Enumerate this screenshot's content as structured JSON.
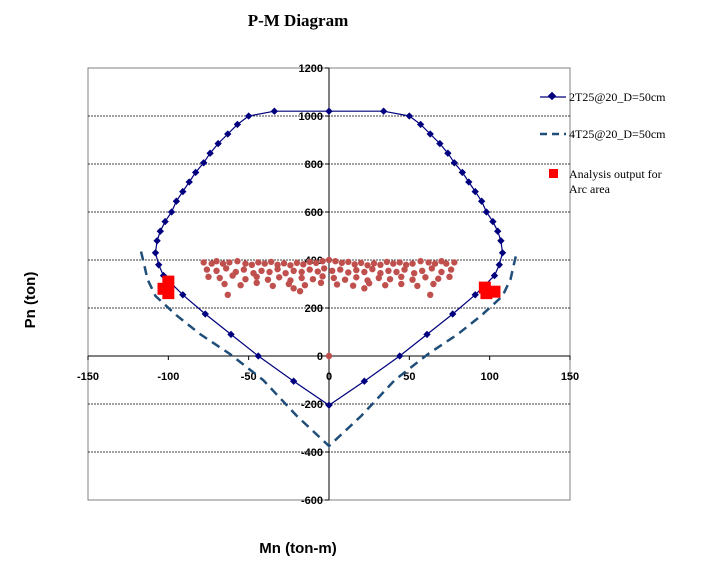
{
  "chart_data": {
    "type": "scatter",
    "title": "P-M Diagram",
    "xlabel": "Mn (ton-m)",
    "ylabel": "Pn (ton)",
    "xlim": [
      -150,
      150
    ],
    "ylim": [
      -600,
      1200
    ],
    "xticks": [
      -150,
      -100,
      -50,
      0,
      50,
      100,
      150
    ],
    "yticks": [
      -600,
      -400,
      -200,
      0,
      200,
      400,
      600,
      800,
      1000,
      1200
    ],
    "grid": "horizontal dashed",
    "legend_position": "right",
    "colors": {
      "series1": "#00007f",
      "series2": "#1f4e79",
      "series3": "#ff0000",
      "scatter_cloud": "#c0504d",
      "axes": "#000000",
      "grid": "#000000"
    },
    "series": [
      {
        "name": "2T25@20_D=50cm",
        "style": "line-diamond",
        "points": [
          [
            0,
            -205
          ],
          [
            -22,
            -105
          ],
          [
            -44,
            0
          ],
          [
            -61,
            90
          ],
          [
            -77,
            175
          ],
          [
            -91,
            255
          ],
          [
            -103,
            335
          ],
          [
            -106,
            380
          ],
          [
            -108,
            430
          ],
          [
            -107,
            480
          ],
          [
            -105,
            520
          ],
          [
            -102,
            560
          ],
          [
            -98,
            600
          ],
          [
            -95,
            645
          ],
          [
            -91,
            685
          ],
          [
            -87,
            725
          ],
          [
            -83,
            765
          ],
          [
            -78,
            805
          ],
          [
            -74,
            845
          ],
          [
            -69,
            885
          ],
          [
            -63,
            925
          ],
          [
            -57,
            965
          ],
          [
            -50,
            1000
          ],
          [
            -34,
            1020
          ],
          [
            0,
            1020
          ],
          [
            34,
            1020
          ],
          [
            50,
            1000
          ],
          [
            57,
            965
          ],
          [
            63,
            925
          ],
          [
            69,
            885
          ],
          [
            74,
            845
          ],
          [
            78,
            805
          ],
          [
            83,
            765
          ],
          [
            87,
            725
          ],
          [
            91,
            685
          ],
          [
            95,
            645
          ],
          [
            98,
            600
          ],
          [
            102,
            560
          ],
          [
            105,
            520
          ],
          [
            107,
            480
          ],
          [
            108,
            430
          ],
          [
            106,
            380
          ],
          [
            103,
            335
          ],
          [
            91,
            255
          ],
          [
            77,
            175
          ],
          [
            61,
            90
          ],
          [
            44,
            0
          ],
          [
            22,
            -105
          ],
          [
            0,
            -205
          ]
        ],
        "marked_points": [
          [
            0,
            -205
          ],
          [
            -22,
            -105
          ],
          [
            -44,
            0
          ],
          [
            -61,
            90
          ],
          [
            -77,
            175
          ],
          [
            -91,
            255
          ],
          [
            -103,
            335
          ],
          [
            -106,
            380
          ],
          [
            -108,
            430
          ],
          [
            -107,
            480
          ],
          [
            -105,
            520
          ],
          [
            -102,
            560
          ],
          [
            -98,
            600
          ],
          [
            -95,
            645
          ],
          [
            -91,
            685
          ],
          [
            -87,
            725
          ],
          [
            -83,
            765
          ],
          [
            -78,
            805
          ],
          [
            -74,
            845
          ],
          [
            -69,
            885
          ],
          [
            -63,
            925
          ],
          [
            -57,
            965
          ],
          [
            -50,
            1000
          ],
          [
            -34,
            1020
          ],
          [
            0,
            1020
          ],
          [
            34,
            1020
          ],
          [
            50,
            1000
          ],
          [
            57,
            965
          ],
          [
            63,
            925
          ],
          [
            69,
            885
          ],
          [
            74,
            845
          ],
          [
            78,
            805
          ],
          [
            83,
            765
          ],
          [
            87,
            725
          ],
          [
            91,
            685
          ],
          [
            95,
            645
          ],
          [
            98,
            600
          ],
          [
            102,
            560
          ],
          [
            105,
            520
          ],
          [
            107,
            480
          ],
          [
            108,
            430
          ],
          [
            106,
            380
          ],
          [
            103,
            335
          ],
          [
            91,
            255
          ],
          [
            77,
            175
          ],
          [
            61,
            90
          ],
          [
            44,
            0
          ],
          [
            22,
            -105
          ]
        ]
      },
      {
        "name": "4T25@20_D=50cm",
        "style": "dashed",
        "points": [
          [
            -117,
            435
          ],
          [
            -115,
            380
          ],
          [
            -113,
            320
          ],
          [
            -108,
            250
          ],
          [
            -95,
            170
          ],
          [
            -80,
            90
          ],
          [
            -62,
            10
          ],
          [
            -41,
            -100
          ],
          [
            -20,
            -250
          ],
          [
            0,
            -375
          ],
          [
            20,
            -250
          ],
          [
            41,
            -100
          ],
          [
            62,
            10
          ],
          [
            80,
            90
          ],
          [
            95,
            170
          ],
          [
            108,
            250
          ],
          [
            113,
            320
          ],
          [
            115,
            380
          ],
          [
            117,
            435
          ]
        ]
      },
      {
        "name": "Analysis output for Arc area",
        "style": "square",
        "points": [
          [
            -103,
            280
          ],
          [
            -100,
            310
          ],
          [
            -100,
            262
          ],
          [
            97,
            285
          ],
          [
            98,
            262
          ],
          [
            103,
            268
          ]
        ]
      }
    ],
    "scatter_cloud": {
      "points": [
        [
          -78,
          390
        ],
        [
          -73,
          385
        ],
        [
          -70,
          395
        ],
        [
          -66,
          385
        ],
        [
          -62,
          390
        ],
        [
          -57,
          395
        ],
        [
          -52,
          385
        ],
        [
          -48,
          380
        ],
        [
          -44,
          390
        ],
        [
          -40,
          385
        ],
        [
          -36,
          392
        ],
        [
          -32,
          380
        ],
        [
          -28,
          386
        ],
        [
          -24,
          378
        ],
        [
          -20,
          388
        ],
        [
          -16,
          382
        ],
        [
          -12,
          392
        ],
        [
          -8,
          388
        ],
        [
          -4,
          395
        ],
        [
          0,
          400
        ],
        [
          4,
          395
        ],
        [
          8,
          388
        ],
        [
          12,
          392
        ],
        [
          16,
          382
        ],
        [
          20,
          388
        ],
        [
          24,
          378
        ],
        [
          28,
          386
        ],
        [
          32,
          380
        ],
        [
          36,
          392
        ],
        [
          40,
          385
        ],
        [
          44,
          390
        ],
        [
          48,
          380
        ],
        [
          52,
          385
        ],
        [
          57,
          395
        ],
        [
          62,
          390
        ],
        [
          66,
          385
        ],
        [
          70,
          395
        ],
        [
          73,
          385
        ],
        [
          78,
          390
        ],
        [
          -76,
          360
        ],
        [
          -70,
          355
        ],
        [
          -64,
          365
        ],
        [
          -58,
          350
        ],
        [
          -53,
          360
        ],
        [
          -47,
          345
        ],
        [
          -42,
          355
        ],
        [
          -37,
          350
        ],
        [
          -32,
          362
        ],
        [
          -27,
          345
        ],
        [
          -22,
          355
        ],
        [
          -17,
          350
        ],
        [
          -12,
          360
        ],
        [
          -7,
          352
        ],
        [
          -3,
          365
        ],
        [
          2,
          355
        ],
        [
          7,
          360
        ],
        [
          12,
          348
        ],
        [
          17,
          358
        ],
        [
          22,
          350
        ],
        [
          27,
          362
        ],
        [
          32,
          345
        ],
        [
          37,
          355
        ],
        [
          42,
          350
        ],
        [
          47,
          360
        ],
        [
          53,
          345
        ],
        [
          58,
          355
        ],
        [
          64,
          365
        ],
        [
          70,
          350
        ],
        [
          76,
          360
        ],
        [
          -75,
          330
        ],
        [
          -68,
          325
        ],
        [
          -60,
          335
        ],
        [
          -52,
          320
        ],
        [
          -45,
          330
        ],
        [
          -38,
          318
        ],
        [
          -31,
          328
        ],
        [
          -24,
          315
        ],
        [
          -17,
          325
        ],
        [
          -10,
          320
        ],
        [
          -4,
          332
        ],
        [
          3,
          325
        ],
        [
          10,
          318
        ],
        [
          17,
          328
        ],
        [
          24,
          315
        ],
        [
          31,
          325
        ],
        [
          38,
          320
        ],
        [
          45,
          330
        ],
        [
          52,
          318
        ],
        [
          60,
          328
        ],
        [
          68,
          322
        ],
        [
          75,
          330
        ],
        [
          -65,
          300
        ],
        [
          -55,
          295
        ],
        [
          -45,
          305
        ],
        [
          -35,
          292
        ],
        [
          -25,
          300
        ],
        [
          -15,
          295
        ],
        [
          -5,
          305
        ],
        [
          5,
          298
        ],
        [
          15,
          293
        ],
        [
          25,
          303
        ],
        [
          35,
          295
        ],
        [
          45,
          300
        ],
        [
          55,
          292
        ],
        [
          65,
          300
        ],
        [
          -63,
          255
        ],
        [
          -22,
          282
        ],
        [
          -18,
          270
        ],
        [
          22,
          282
        ],
        [
          63,
          255
        ],
        [
          0,
          0
        ]
      ]
    }
  }
}
